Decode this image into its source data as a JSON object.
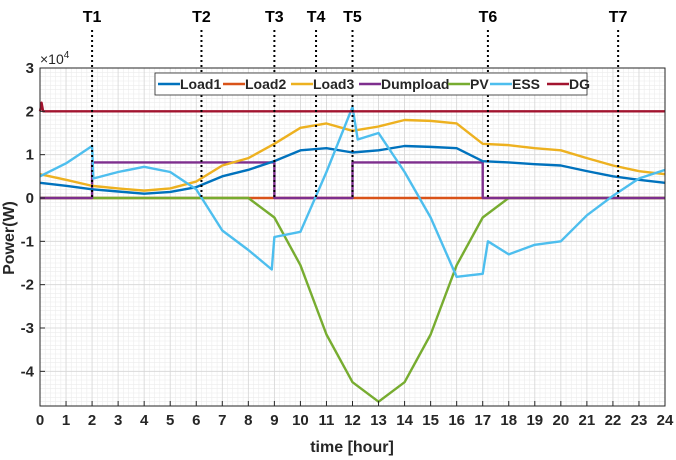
{
  "chart_data": {
    "type": "line",
    "xlabel": "time [hour]",
    "ylabel": "Power(W)",
    "y_exponent_label": "×10",
    "y_exponent_power": "4",
    "xlim": [
      0,
      24
    ],
    "ylim": [
      -4.8,
      3
    ],
    "x_ticks": [
      0,
      1,
      2,
      3,
      4,
      5,
      6,
      7,
      8,
      9,
      10,
      11,
      12,
      13,
      14,
      15,
      16,
      17,
      18,
      19,
      20,
      21,
      22,
      23,
      24
    ],
    "y_ticks": [
      -4,
      -3,
      -2,
      -1,
      0,
      1,
      2,
      3
    ],
    "grid": "on (major and minor)",
    "legend_position": "top, inside plot",
    "events": [
      {
        "label": "T1",
        "x": 2
      },
      {
        "label": "T2",
        "x": 6.2
      },
      {
        "label": "T3",
        "x": 9
      },
      {
        "label": "T4",
        "x": 10.6
      },
      {
        "label": "T5",
        "x": 12
      },
      {
        "label": "T6",
        "x": 17.2
      },
      {
        "label": "T7",
        "x": 22.2
      }
    ],
    "series": [
      {
        "name": "Load1",
        "color": "#0072BD",
        "x": [
          0,
          1,
          2,
          3,
          4,
          5,
          6,
          7,
          8,
          9,
          10,
          11,
          12,
          13,
          14,
          15,
          16,
          17,
          18,
          19,
          20,
          21,
          22,
          23,
          24
        ],
        "y": [
          0.35,
          0.28,
          0.2,
          0.15,
          0.1,
          0.14,
          0.25,
          0.5,
          0.65,
          0.85,
          1.1,
          1.15,
          1.05,
          1.1,
          1.2,
          1.18,
          1.15,
          0.85,
          0.82,
          0.78,
          0.75,
          0.62,
          0.5,
          0.42,
          0.35
        ]
      },
      {
        "name": "Load2",
        "color": "#D95319",
        "x": [
          0,
          24
        ],
        "y": [
          0,
          0
        ]
      },
      {
        "name": "Load3",
        "color": "#EDB120",
        "x": [
          0,
          1,
          2,
          3,
          4,
          5,
          6,
          7,
          8,
          9,
          10,
          11,
          12,
          13,
          14,
          15,
          16,
          17,
          18,
          19,
          20,
          21,
          22,
          23,
          24
        ],
        "y": [
          0.55,
          0.42,
          0.28,
          0.22,
          0.17,
          0.22,
          0.38,
          0.75,
          0.92,
          1.25,
          1.62,
          1.72,
          1.55,
          1.65,
          1.8,
          1.78,
          1.72,
          1.25,
          1.22,
          1.15,
          1.1,
          0.92,
          0.75,
          0.62,
          0.55
        ]
      },
      {
        "name": "Dumpload",
        "color": "#7E2F8E",
        "x": [
          0,
          2,
          2,
          9,
          9,
          12,
          12,
          17,
          17,
          24
        ],
        "y": [
          0,
          0,
          0.82,
          0.82,
          0,
          0,
          0.82,
          0.82,
          0,
          0
        ]
      },
      {
        "name": "PV",
        "color": "#77AC30",
        "x": [
          0,
          8,
          9,
          10,
          11,
          12,
          13,
          14,
          15,
          16,
          17,
          18,
          24
        ],
        "y": [
          0,
          0,
          -0.45,
          -1.55,
          -3.15,
          -4.25,
          -4.7,
          -4.25,
          -3.15,
          -1.55,
          -0.45,
          0,
          0
        ]
      },
      {
        "name": "ESS",
        "color": "#4DBEEE",
        "x": [
          0,
          1,
          2,
          2.05,
          3,
          4,
          5,
          6,
          7,
          8,
          8.9,
          9,
          10,
          11,
          12,
          12.2,
          13,
          14,
          15,
          16,
          17,
          17.2,
          18,
          19,
          20,
          21,
          22,
          23,
          24
        ],
        "y": [
          0.5,
          0.8,
          1.2,
          0.45,
          0.6,
          0.72,
          0.6,
          0.2,
          -0.75,
          -1.2,
          -1.65,
          -0.9,
          -0.78,
          0.6,
          2.1,
          1.35,
          1.5,
          0.6,
          -0.45,
          -1.82,
          -1.75,
          -1.0,
          -1.3,
          -1.08,
          -1.0,
          -0.4,
          0.05,
          0.45,
          0.65
        ]
      },
      {
        "name": "DG",
        "color": "#A2142F",
        "x": [
          0,
          0.06,
          0.12,
          24
        ],
        "y": [
          2.0,
          2.2,
          2.0,
          2.0
        ]
      }
    ]
  }
}
